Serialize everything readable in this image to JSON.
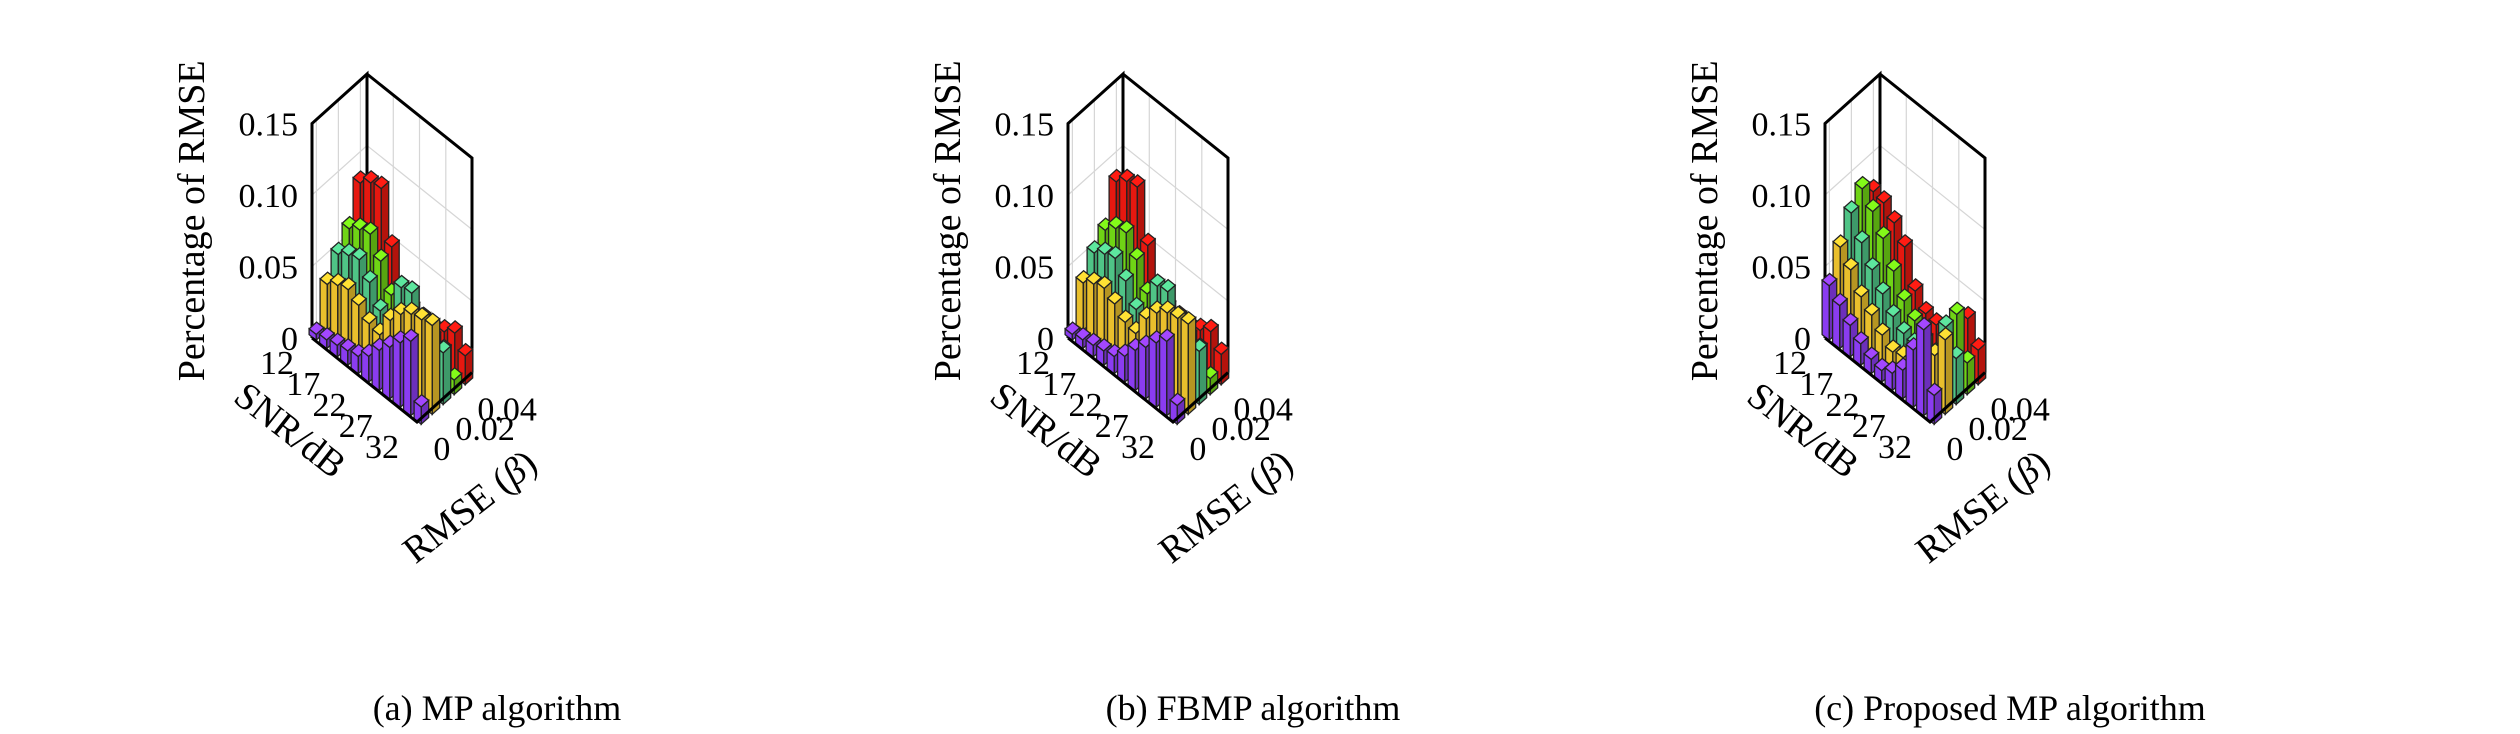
{
  "chart_data": [
    {
      "type": "bar3d",
      "caption": "(a) MP algorithm",
      "zlabel": "Percentage of RMSE",
      "ylabel": "SNR/dB",
      "xlabel_text": "RMSE (",
      "xlabel_beta": "β",
      "xlabel_close": ")",
      "z_ticks": [
        "0",
        "0.05",
        "0.10",
        "0.15"
      ],
      "z_tick_values": [
        0,
        0.05,
        0.1,
        0.15
      ],
      "zlim": [
        0,
        0.15
      ],
      "snr_ticks": [
        "12",
        "17",
        "22",
        "27",
        "32"
      ],
      "snr_tick_values": [
        12,
        17,
        22,
        27,
        32
      ],
      "rmse_ticks": [
        "0",
        "0.02",
        "0.04"
      ],
      "rmse_tick_values": [
        0,
        0.02,
        0.04
      ],
      "series_colors": [
        "#8a3cf0",
        "#e9bf2c",
        "#4fc486",
        "#6fd415",
        "#e61810"
      ],
      "snr_rows": [
        12,
        14,
        16,
        18,
        20,
        22,
        24,
        26,
        28,
        30,
        32
      ],
      "rmse_cols": [
        0,
        0.01,
        0.02,
        0.03,
        0.04
      ],
      "values": [
        [
          0.004,
          0.032,
          0.046,
          0.057,
          0.082
        ],
        [
          0.006,
          0.037,
          0.051,
          0.062,
          0.088
        ],
        [
          0.008,
          0.04,
          0.054,
          0.065,
          0.09
        ],
        [
          0.01,
          0.035,
          0.044,
          0.052,
          0.055
        ],
        [
          0.012,
          0.028,
          0.03,
          0.034,
          0.012
        ],
        [
          0.018,
          0.026,
          0.022,
          0.02,
          0.01
        ],
        [
          0.028,
          0.042,
          0.058,
          0.036,
          0.022
        ],
        [
          0.036,
          0.052,
          0.06,
          0.034,
          0.021
        ],
        [
          0.045,
          0.058,
          0.044,
          0.027,
          0.025
        ],
        [
          0.052,
          0.06,
          0.04,
          0.024,
          0.03
        ],
        [
          0.012,
          0.062,
          0.036,
          0.01,
          0.02
        ]
      ]
    },
    {
      "type": "bar3d",
      "caption": "(b) FBMP algorithm",
      "zlabel": "Percentage of RMSE",
      "ylabel": "SNR/dB",
      "xlabel_text": "RMSE (",
      "xlabel_beta": "β",
      "xlabel_close": ")",
      "z_ticks": [
        "0",
        "0.05",
        "0.10",
        "0.15"
      ],
      "z_tick_values": [
        0,
        0.05,
        0.1,
        0.15
      ],
      "zlim": [
        0,
        0.15
      ],
      "snr_ticks": [
        "12",
        "17",
        "22",
        "27",
        "32"
      ],
      "snr_tick_values": [
        12,
        17,
        22,
        27,
        32
      ],
      "rmse_ticks": [
        "0",
        "0.02",
        "0.04"
      ],
      "rmse_tick_values": [
        0,
        0.02,
        0.04
      ],
      "series_colors": [
        "#8a3cf0",
        "#e9bf2c",
        "#4fc486",
        "#6fd415",
        "#e61810"
      ],
      "snr_rows": [
        12,
        14,
        16,
        18,
        20,
        22,
        24,
        26,
        28,
        30,
        32
      ],
      "rmse_cols": [
        0,
        0.01,
        0.02,
        0.03,
        0.04
      ],
      "values": [
        [
          0.004,
          0.033,
          0.047,
          0.056,
          0.083
        ],
        [
          0.006,
          0.038,
          0.052,
          0.063,
          0.089
        ],
        [
          0.008,
          0.041,
          0.055,
          0.066,
          0.091
        ],
        [
          0.01,
          0.036,
          0.045,
          0.053,
          0.056
        ],
        [
          0.012,
          0.029,
          0.031,
          0.035,
          0.013
        ],
        [
          0.018,
          0.027,
          0.023,
          0.021,
          0.011
        ],
        [
          0.028,
          0.043,
          0.059,
          0.037,
          0.023
        ],
        [
          0.036,
          0.053,
          0.061,
          0.035,
          0.022
        ],
        [
          0.045,
          0.059,
          0.045,
          0.028,
          0.026
        ],
        [
          0.052,
          0.061,
          0.041,
          0.025,
          0.031
        ],
        [
          0.013,
          0.063,
          0.037,
          0.011,
          0.021
        ]
      ]
    },
    {
      "type": "bar3d",
      "caption": "(c) Proposed MP algorithm",
      "zlabel": "Percentage of RMSE",
      "ylabel": "SNR/dB",
      "xlabel_text": "RMSE (",
      "xlabel_beta": "β",
      "xlabel_close": ")",
      "z_ticks": [
        "0",
        "0.05",
        "0.10",
        "0.15"
      ],
      "z_tick_values": [
        0,
        0.05,
        0.1,
        0.15
      ],
      "zlim": [
        0,
        0.15
      ],
      "snr_ticks": [
        "12",
        "17",
        "22",
        "27",
        "32"
      ],
      "snr_tick_values": [
        12,
        17,
        22,
        27,
        32
      ],
      "rmse_ticks": [
        "0",
        "0.02",
        "0.04"
      ],
      "rmse_tick_values": [
        0,
        0.02,
        0.04
      ],
      "series_colors": [
        "#8a3cf0",
        "#e9bf2c",
        "#4fc486",
        "#6fd415",
        "#e61810"
      ],
      "snr_rows": [
        12,
        14,
        16,
        18,
        20,
        22,
        24,
        26,
        28,
        30,
        32
      ],
      "rmse_cols": [
        0,
        0.01,
        0.02,
        0.03,
        0.04
      ],
      "values": [
        [
          0.038,
          0.058,
          0.075,
          0.085,
          0.076
        ],
        [
          0.03,
          0.048,
          0.06,
          0.075,
          0.074
        ],
        [
          0.022,
          0.035,
          0.047,
          0.062,
          0.066
        ],
        [
          0.015,
          0.028,
          0.036,
          0.045,
          0.055
        ],
        [
          0.01,
          0.02,
          0.026,
          0.03,
          0.03
        ],
        [
          0.008,
          0.014,
          0.02,
          0.022,
          0.02
        ],
        [
          0.012,
          0.016,
          0.018,
          0.014,
          0.018
        ],
        [
          0.02,
          0.018,
          0.012,
          0.01,
          0.012
        ],
        [
          0.04,
          0.022,
          0.015,
          0.028,
          0.028
        ],
        [
          0.06,
          0.035,
          0.048,
          0.05,
          0.04
        ],
        [
          0.02,
          0.052,
          0.032,
          0.022,
          0.024
        ]
      ]
    }
  ]
}
